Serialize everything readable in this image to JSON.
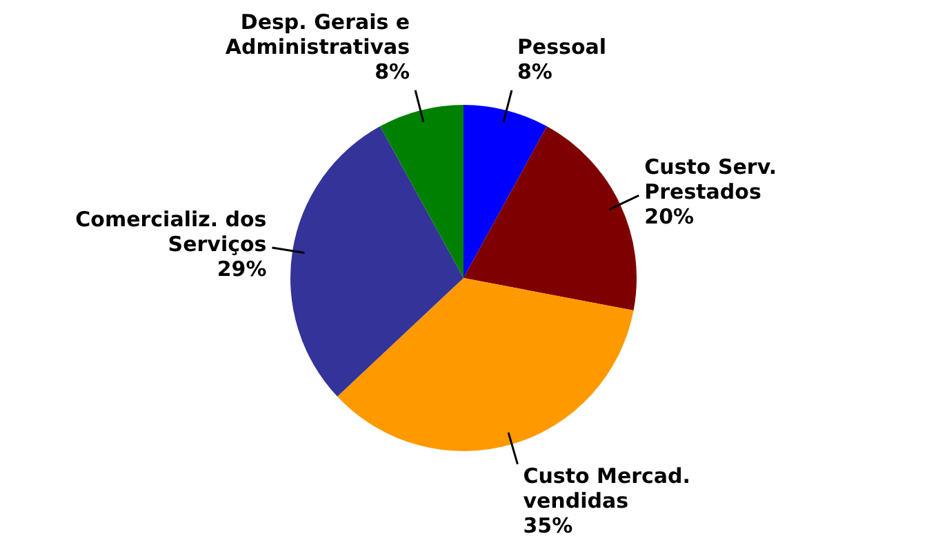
{
  "chart_data": {
    "type": "pie",
    "categories": [
      "Pessoal",
      "Custo Serv. Prestados",
      "Custo Mercad. vendidas",
      "Comercializ. dos Serviços",
      "Desp. Gerais e Administrativas"
    ],
    "values": [
      8,
      20,
      35,
      29,
      8
    ],
    "colors": [
      "#0000ff",
      "#7f0000",
      "#ff9900",
      "#333399",
      "#008000"
    ],
    "value_labels": [
      "8%",
      "20%",
      "35%",
      "29%",
      "8%"
    ]
  }
}
